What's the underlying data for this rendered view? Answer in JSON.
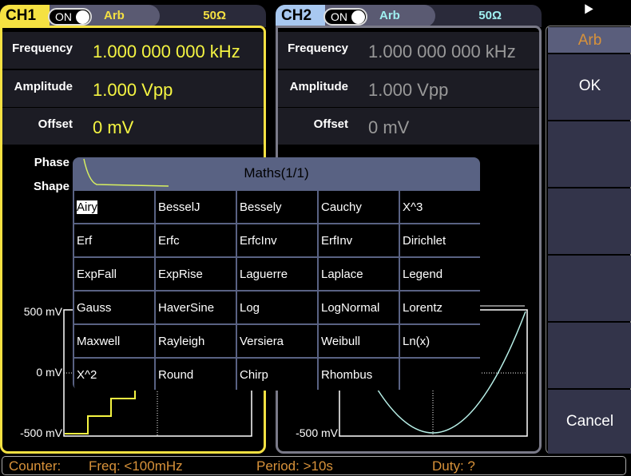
{
  "ch1": {
    "name": "CH1",
    "toggle": "ON",
    "wave": "Arb",
    "impedance": "50Ω",
    "frequency_label": "Frequency",
    "frequency": "1.000 000 000 kHz",
    "amplitude_label": "Amplitude",
    "amplitude": "1.000 Vpp",
    "offset_label": "Offset",
    "offset": "0 mV",
    "phase_label": "Phase",
    "shape_label": "Shape",
    "axis": [
      "500 mV",
      "0 mV",
      "-500 mV"
    ],
    "color": "#f5e142"
  },
  "ch2": {
    "name": "CH2",
    "toggle": "ON",
    "wave": "Arb",
    "impedance": "50Ω",
    "frequency_label": "Frequency",
    "frequency": "1.000 000 000 kHz",
    "amplitude_label": "Amplitude",
    "amplitude": "1.000 Vpp",
    "offset_label": "Offset",
    "offset": "0 mV",
    "axis": [
      "-500 mV"
    ],
    "color": "#a8c8f0"
  },
  "dialog": {
    "title": "Maths(1/1)",
    "selected": "Airy",
    "items": [
      "Airy",
      "BesselJ",
      "Bessely",
      "Cauchy",
      "X^3",
      "Erf",
      "Erfc",
      "ErfcInv",
      "ErfInv",
      "Dirichlet",
      "ExpFall",
      "ExpRise",
      "Laguerre",
      "Laplace",
      "Legend",
      "Gauss",
      "HaverSine",
      "Log",
      "LogNormal",
      "Lorentz",
      "Maxwell",
      "Rayleigh",
      "Versiera",
      "Weibull",
      "Ln(x)",
      "X^2",
      "Round",
      "Chirp",
      "Rhombus",
      ""
    ]
  },
  "menu": {
    "header": "Arb",
    "ok": "OK",
    "cancel": "Cancel",
    "usb_icon": "usb-icon"
  },
  "status": {
    "counter": "Counter:",
    "freq": "Freq: <100mHz",
    "period": "Period: >10s",
    "duty": "Duty: ?"
  }
}
